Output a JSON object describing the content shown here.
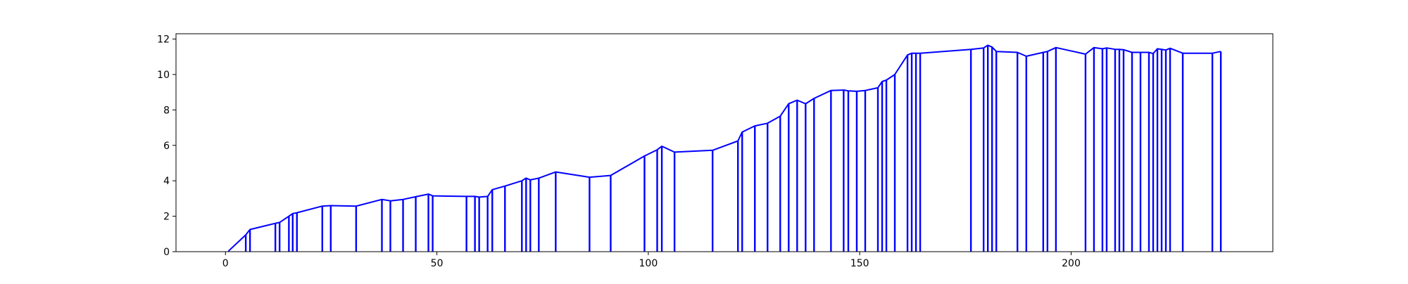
{
  "chart_data": {
    "type": "line",
    "title": "",
    "xlabel": "",
    "ylabel": "",
    "xlim": [
      -11.7,
      247.7
    ],
    "ylim": [
      0,
      12.3
    ],
    "xticks": [
      0,
      50,
      100,
      150,
      200
    ],
    "xtick_labels": [
      "0",
      "50",
      "100",
      "150",
      "200"
    ],
    "yticks": [
      0,
      2,
      4,
      6,
      8,
      10,
      12
    ],
    "ytick_labels": [
      "0",
      "2",
      "4",
      "6",
      "8",
      "10",
      "12"
    ],
    "grid": false,
    "legend": "none",
    "series": [
      {
        "color": "#0000ff",
        "style": "stems-with-envelope",
        "x": [
          0.7,
          4.8,
          5.8,
          11.8,
          12.8,
          15.0,
          15.9,
          16.9,
          22.9,
          24.9,
          30.9,
          37.0,
          39.0,
          42.0,
          45.0,
          48.0,
          49.0,
          57.0,
          59.0,
          60.0,
          62.0,
          63.1,
          66.1,
          70.1,
          71.1,
          72.1,
          74.1,
          78.1,
          86.1,
          91.1,
          99.1,
          102.1,
          103.2,
          106.2,
          115.2,
          121.2,
          122.2,
          125.2,
          128.2,
          131.2,
          133.2,
          135.2,
          137.2,
          139.2,
          143.2,
          146.2,
          147.3,
          149.3,
          151.3,
          154.3,
          155.3,
          156.3,
          158.3,
          161.3,
          162.3,
          163.3,
          164.3,
          176.3,
          179.3,
          180.3,
          181.3,
          182.3,
          187.3,
          189.4,
          193.4,
          194.4,
          196.4,
          203.4,
          205.4,
          207.4,
          208.4,
          210.4,
          211.4,
          212.4,
          214.4,
          216.4,
          218.4,
          219.4,
          220.4,
          221.4,
          222.4,
          223.4,
          226.4,
          233.4,
          235.4
        ],
        "y": [
          0.03,
          0.95,
          1.25,
          1.6,
          1.65,
          2.0,
          2.15,
          2.2,
          2.57,
          2.6,
          2.57,
          2.95,
          2.87,
          2.95,
          3.1,
          3.25,
          3.15,
          3.12,
          3.12,
          3.08,
          3.12,
          3.5,
          3.7,
          4.0,
          4.15,
          4.05,
          4.15,
          4.5,
          4.2,
          4.3,
          5.4,
          5.75,
          5.95,
          5.62,
          5.72,
          6.25,
          6.75,
          7.1,
          7.25,
          7.65,
          8.35,
          8.55,
          8.35,
          8.65,
          9.1,
          9.12,
          9.08,
          9.05,
          9.1,
          9.25,
          9.6,
          9.68,
          10.0,
          11.1,
          11.2,
          11.2,
          11.2,
          11.42,
          11.5,
          11.65,
          11.55,
          11.3,
          11.25,
          11.03,
          11.25,
          11.3,
          11.52,
          11.15,
          11.52,
          11.45,
          11.5,
          11.42,
          11.42,
          11.4,
          11.25,
          11.25,
          11.25,
          11.18,
          11.45,
          11.42,
          11.38,
          11.48,
          11.2,
          11.2,
          11.3
        ]
      }
    ]
  }
}
